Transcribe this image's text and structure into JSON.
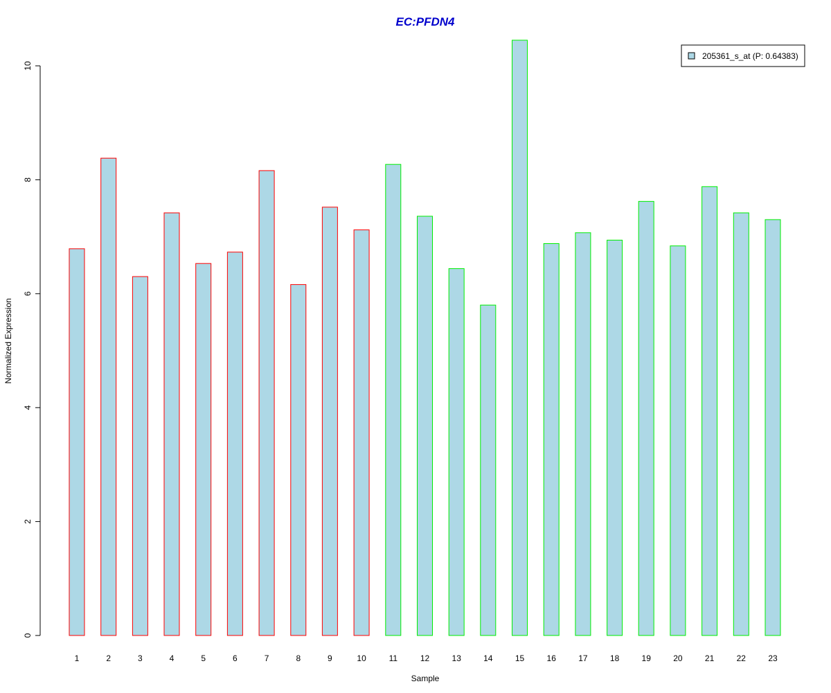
{
  "chart_data": {
    "type": "bar",
    "title": "EC:PFDN4",
    "xlabel": "Sample",
    "ylabel": "Normalized Expression",
    "ylim": [
      0,
      10.5
    ],
    "yticks": [
      0,
      2,
      4,
      6,
      8,
      10
    ],
    "categories": [
      "1",
      "2",
      "3",
      "4",
      "5",
      "6",
      "7",
      "8",
      "9",
      "10",
      "11",
      "12",
      "13",
      "14",
      "15",
      "16",
      "17",
      "18",
      "19",
      "20",
      "21",
      "22",
      "23"
    ],
    "series": [
      {
        "name": "205361_s_at (P: 0.64383)",
        "values": [
          6.79,
          8.38,
          6.3,
          7.42,
          6.53,
          6.73,
          8.16,
          6.16,
          7.52,
          7.12,
          8.27,
          7.36,
          6.44,
          5.8,
          10.45,
          6.88,
          7.07,
          6.94,
          7.62,
          6.84,
          7.88,
          7.42,
          7.3
        ]
      }
    ],
    "groups": [
      {
        "samples": [
          1,
          2,
          3,
          4,
          5,
          6,
          7,
          8,
          9,
          10
        ],
        "border_color": "#ff0000"
      },
      {
        "samples": [
          11,
          12,
          13,
          14,
          15,
          16,
          17,
          18,
          19,
          20,
          21,
          22,
          23
        ],
        "border_color": "#00ee00"
      }
    ],
    "fill_color": "#add8e6",
    "title_color": "#0000cc",
    "legend": {
      "label": "205361_s_at (P: 0.64383)",
      "placement": "top-right"
    },
    "grid": false
  }
}
